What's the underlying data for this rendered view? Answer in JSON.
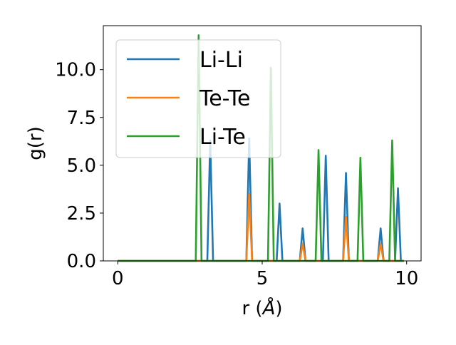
{
  "chart_data": {
    "type": "line",
    "title": "",
    "xlabel": "r (",
    "xlabel_symbol": "Å",
    "xlabel_close": ")",
    "ylabel": "g(r)",
    "xlim": [
      -0.5,
      10.5
    ],
    "ylim": [
      0,
      12.3
    ],
    "xticks": [
      0,
      5,
      10
    ],
    "xtick_labels": [
      "0",
      "5",
      "10"
    ],
    "yticks": [
      0.0,
      2.5,
      5.0,
      7.5,
      10.0
    ],
    "ytick_labels": [
      "0.0",
      "2.5",
      "5.0",
      "7.5",
      "10.0"
    ],
    "grid": false,
    "legend_position": "upper-left",
    "peak_half_width": 0.1,
    "x_range": [
      0,
      9.9
    ],
    "series": [
      {
        "name": "Li-Li",
        "color": "#1f77b4",
        "peaks": [
          [
            3.2,
            6.3
          ],
          [
            4.55,
            6.4
          ],
          [
            5.6,
            3.0
          ],
          [
            6.4,
            1.7
          ],
          [
            7.2,
            5.5
          ],
          [
            7.9,
            4.6
          ],
          [
            9.1,
            1.7
          ],
          [
            9.7,
            3.8
          ]
        ]
      },
      {
        "name": "Te-Te",
        "color": "#ff7f0e",
        "peaks": [
          [
            4.55,
            3.5
          ],
          [
            6.4,
            0.9
          ],
          [
            7.9,
            2.3
          ],
          [
            9.1,
            0.9
          ]
        ]
      },
      {
        "name": "Li-Te",
        "color": "#2ca02c",
        "peaks": [
          [
            2.8,
            11.8
          ],
          [
            5.3,
            10.1
          ],
          [
            6.95,
            5.8
          ],
          [
            8.4,
            5.4
          ],
          [
            9.5,
            6.3
          ]
        ]
      }
    ]
  }
}
